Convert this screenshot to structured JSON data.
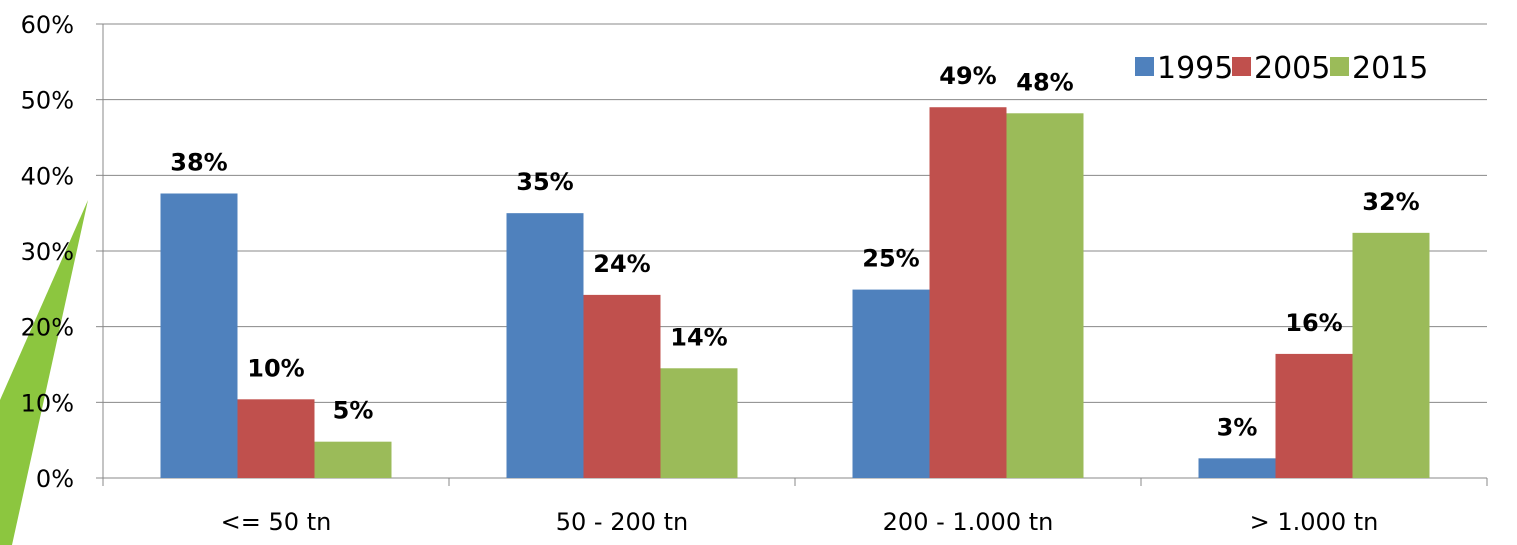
{
  "chart_data": {
    "type": "bar",
    "title": "",
    "xlabel": "",
    "ylabel": "",
    "categories": [
      "<= 50 tn",
      "50 - 200 tn",
      "200 - 1.000 tn",
      "> 1.000 tn"
    ],
    "series": [
      {
        "name": "1995",
        "color": "#4f81bd",
        "values": [
          37.6,
          35.0,
          24.9,
          2.6
        ],
        "labels": [
          "38%",
          "35%",
          "25%",
          "3%"
        ]
      },
      {
        "name": "2005",
        "color": "#c0504d",
        "values": [
          10.4,
          24.2,
          49.0,
          16.4
        ],
        "labels": [
          "10%",
          "24%",
          "49%",
          "16%"
        ]
      },
      {
        "name": "2015",
        "color": "#9bbb59",
        "values": [
          4.8,
          14.5,
          48.2,
          32.4
        ],
        "labels": [
          "5%",
          "14%",
          "48%",
          "32%"
        ]
      }
    ],
    "ylim": [
      0,
      60
    ],
    "yticks": [
      "0%",
      "10%",
      "20%",
      "30%",
      "40%",
      "50%",
      "60%"
    ],
    "grid": true,
    "legend_position": "top-right"
  }
}
